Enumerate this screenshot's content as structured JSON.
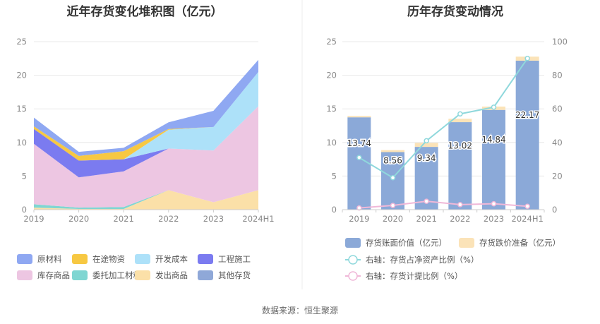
{
  "left_chart": {
    "title": "近年存货变化堆积图（亿元）"
  },
  "right_chart": {
    "title": "历年存货变动情况"
  },
  "source": "数据来源：恒生聚源",
  "colors": {
    "原材料": "#8fa8f2",
    "在途物资": "#f7c842",
    "开发成本": "#ade1f9",
    "工程施工": "#7b7bf0",
    "库存商品": "#edc6e2",
    "委托加工材料": "#7fd6d2",
    "发出商品": "#fbe0a8",
    "其他存货": "#8fa8d8",
    "book_value": "#8ba9d8",
    "impairment": "#fbe3b8",
    "ratio_line": "#8fd8dc",
    "provision_line": "#f0b8d8",
    "grid": "#e8e8e8",
    "axis": "#cccccc"
  },
  "chart_data": [
    {
      "type": "area",
      "stacked": true,
      "title": "近年存货变化堆积图（亿元）",
      "categories": [
        "2019",
        "2020",
        "2021",
        "2022",
        "2023",
        "2024H1"
      ],
      "ylim": [
        0,
        25
      ],
      "yticks": [
        0,
        5,
        10,
        15,
        20,
        25
      ],
      "series": [
        {
          "name": "发出商品",
          "values": [
            0.3,
            0.1,
            0.1,
            2.9,
            1.1,
            2.9
          ]
        },
        {
          "name": "委托加工材料",
          "values": [
            0.5,
            0.2,
            0.3,
            0.0,
            0.0,
            0.0
          ]
        },
        {
          "name": "库存商品",
          "values": [
            9.0,
            4.5,
            5.3,
            6.2,
            7.7,
            12.5
          ]
        },
        {
          "name": "工程施工",
          "values": [
            2.2,
            2.5,
            1.8,
            0.0,
            0.0,
            0.0
          ]
        },
        {
          "name": "开发成本",
          "values": [
            0.0,
            0.0,
            0.0,
            2.8,
            3.5,
            5.1
          ]
        },
        {
          "name": "在途物资",
          "values": [
            0.4,
            0.7,
            1.2,
            0.1,
            0.0,
            0.0
          ]
        },
        {
          "name": "其他存货",
          "values": [
            0.0,
            0.0,
            0.0,
            0.0,
            0.0,
            0.0
          ]
        },
        {
          "name": "原材料",
          "values": [
            1.3,
            0.6,
            0.5,
            1.0,
            2.4,
            1.8
          ]
        }
      ],
      "legend": [
        "原材料",
        "在途物资",
        "开发成本",
        "工程施工",
        "库存商品",
        "委托加工材料",
        "发出商品",
        "其他存货"
      ],
      "legend_position": "bottom"
    },
    {
      "type": "bar",
      "title": "历年存货变动情况",
      "categories": [
        "2019",
        "2020",
        "2021",
        "2022",
        "2023",
        "2024H1"
      ],
      "ylim": [
        0,
        25
      ],
      "yticks": [
        0,
        5,
        10,
        15,
        20,
        25
      ],
      "y2lim": [
        0,
        100
      ],
      "y2ticks": [
        0,
        20,
        40,
        60,
        80,
        100
      ],
      "series": [
        {
          "name": "存货账面价值（亿元）",
          "kind": "bar",
          "values": [
            13.74,
            8.56,
            9.34,
            13.02,
            14.84,
            22.17
          ],
          "labels": [
            "13.74",
            "8.56",
            "9.34",
            "13.02",
            "14.84",
            "22.17"
          ]
        },
        {
          "name": "存货跌价准备（亿元）",
          "kind": "bar",
          "stacked": true,
          "values": [
            0.2,
            0.3,
            0.6,
            0.5,
            0.5,
            0.6
          ]
        },
        {
          "name": "右轴：存货占净资产比例（%）",
          "kind": "line",
          "axis": "right",
          "values": [
            31,
            19,
            41,
            57,
            61,
            90
          ]
        },
        {
          "name": "右轴：存货计提比例（%）",
          "kind": "line",
          "axis": "right",
          "values": [
            1,
            2.5,
            5,
            3,
            3.5,
            2
          ]
        }
      ],
      "legend_position": "bottom"
    }
  ]
}
